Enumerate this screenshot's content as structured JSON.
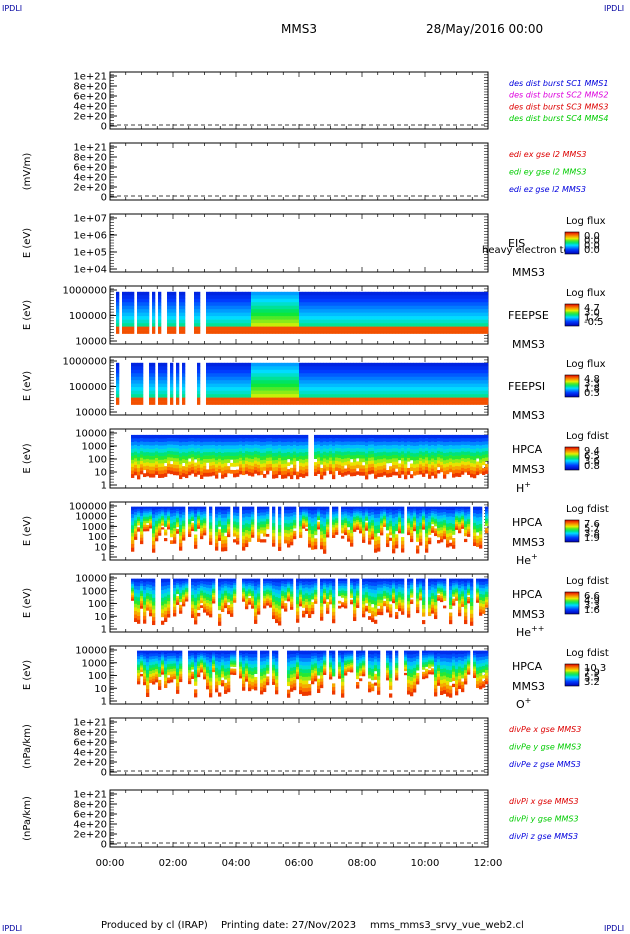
{
  "header": {
    "corner_label": "IPDLI",
    "spacecraft": "MMS3",
    "date_time": "28/May/2016 00:00"
  },
  "footer": {
    "produced_by": "Produced by cl (IRAP)",
    "printing_date": "Printing date: 27/Nov/2023",
    "script_name": "mms_mms3_srvy_vue_web2.cl"
  },
  "colors": {
    "blue": "#0000dd",
    "magenta": "#dd00dd",
    "red": "#dd0000",
    "green": "#00cc00",
    "frame": "#000000"
  },
  "chart_data": [
    {
      "type": "line",
      "id": "des_dist",
      "ylabel": "",
      "yticks": [
        "1e+21",
        "8e+20",
        "6e+20",
        "4e+20",
        "2e+20",
        "0"
      ],
      "series": [
        {
          "name": "des dist burst SC1 MMS1",
          "color": "#0000dd",
          "values": []
        },
        {
          "name": "des dist burst SC2 MMS2",
          "color": "#dd00dd",
          "values": []
        },
        {
          "name": "des dist burst SC3 MMS3",
          "color": "#dd0000",
          "values": []
        },
        {
          "name": "des dist burst SC4 MMS4",
          "color": "#00cc00",
          "values": []
        }
      ]
    },
    {
      "type": "line",
      "id": "edi_e",
      "ylabel": "(mV/m)",
      "yticks": [
        "1e+21",
        "8e+20",
        "6e+20",
        "4e+20",
        "2e+20",
        "0"
      ],
      "series": [
        {
          "name": "edi ex gse l2 MMS3",
          "color": "#dd0000",
          "values": []
        },
        {
          "name": "edi ey gse l2 MMS3",
          "color": "#00cc00",
          "values": []
        },
        {
          "name": "edi ez gse l2 MMS3",
          "color": "#0000dd",
          "values": []
        }
      ]
    },
    {
      "type": "heatmap",
      "id": "eis",
      "ylabel": "E (eV)",
      "yticks": [
        "1e+07",
        "1e+06",
        "1e+05",
        "1e+04"
      ],
      "instrument": "EIS",
      "spacecraft": "MMS3",
      "overlay_text": "heavy electron to",
      "colorbar_title": "Log flux",
      "colorbar_ticks": [
        "0.0",
        "0.0",
        "0.0",
        "0.0"
      ]
    },
    {
      "type": "heatmap",
      "id": "feepse",
      "ylabel": "E (eV)",
      "yticks": [
        "1000000",
        "100000",
        "10000"
      ],
      "instrument": "FEEPSE",
      "spacecraft": "MMS3",
      "colorbar_title": "Log flux",
      "colorbar_ticks": [
        "4.7",
        "3.0",
        "1.2",
        "-0.5"
      ]
    },
    {
      "type": "heatmap",
      "id": "feepsi",
      "ylabel": "E (eV)",
      "yticks": [
        "1000000",
        "100000",
        "10000"
      ],
      "instrument": "FEEPSI",
      "spacecraft": "MMS3",
      "colorbar_title": "Log flux",
      "colorbar_ticks": [
        "4.8",
        "3.3",
        "1.8",
        "0.3"
      ]
    },
    {
      "type": "heatmap",
      "id": "hpca_h",
      "ylabel": "E (eV)",
      "yticks": [
        "10000",
        "1000",
        "100",
        "10",
        "1"
      ],
      "instrument": "HPCA",
      "spacecraft": "MMS3",
      "species": "H",
      "species_sup": "+",
      "colorbar_title": "Log fdist",
      "colorbar_ticks": [
        "9.4",
        "6.5",
        "3.6",
        "0.8"
      ]
    },
    {
      "type": "heatmap",
      "id": "hpca_he",
      "ylabel": "E (eV)",
      "yticks": [
        "100000",
        "10000",
        "1000",
        "100",
        "10",
        "1"
      ],
      "instrument": "HPCA",
      "spacecraft": "MMS3",
      "species": "He",
      "species_sup": "+",
      "colorbar_title": "Log fdist",
      "colorbar_ticks": [
        "7.6",
        "5.7",
        "3.8",
        "1.9"
      ]
    },
    {
      "type": "heatmap",
      "id": "hpca_hepp",
      "ylabel": "E (eV)",
      "yticks": [
        "10000",
        "1000",
        "100",
        "10",
        "1"
      ],
      "instrument": "HPCA",
      "spacecraft": "MMS3",
      "species": "He",
      "species_sup": "++",
      "colorbar_title": "Log fdist",
      "colorbar_ticks": [
        "6.6",
        "4.9",
        "3.3",
        "1.6"
      ]
    },
    {
      "type": "heatmap",
      "id": "hpca_o",
      "ylabel": "E (eV)",
      "yticks": [
        "10000",
        "1000",
        "100",
        "10",
        "1"
      ],
      "instrument": "HPCA",
      "spacecraft": "MMS3",
      "species": "O",
      "species_sup": "+",
      "colorbar_title": "Log fdist",
      "colorbar_ticks": [
        "10.3",
        "7.9",
        "5.5",
        "3.2"
      ]
    },
    {
      "type": "line",
      "id": "divpe",
      "ylabel": "(nPa/km)",
      "yticks": [
        "1e+21",
        "8e+20",
        "6e+20",
        "4e+20",
        "2e+20",
        "0"
      ],
      "series": [
        {
          "name": "divPe x gse MMS3",
          "color": "#dd0000",
          "values": []
        },
        {
          "name": "divPe y gse MMS3",
          "color": "#00cc00",
          "values": []
        },
        {
          "name": "divPe z gse MMS3",
          "color": "#0000dd",
          "values": []
        }
      ]
    },
    {
      "type": "line",
      "id": "divpi",
      "ylabel": "(nPa/km)",
      "yticks": [
        "1e+21",
        "8e+20",
        "6e+20",
        "4e+20",
        "2e+20",
        "0"
      ],
      "series": [
        {
          "name": "divPi x gse MMS3",
          "color": "#dd0000",
          "values": []
        },
        {
          "name": "divPi y gse MMS3",
          "color": "#00cc00",
          "values": []
        },
        {
          "name": "divPi z gse MMS3",
          "color": "#0000dd",
          "values": []
        }
      ]
    }
  ],
  "time_axis": {
    "ticks": [
      "00:00",
      "02:00",
      "04:00",
      "06:00",
      "08:00",
      "10:00",
      "12:00"
    ],
    "range_hours": [
      0,
      12
    ]
  }
}
